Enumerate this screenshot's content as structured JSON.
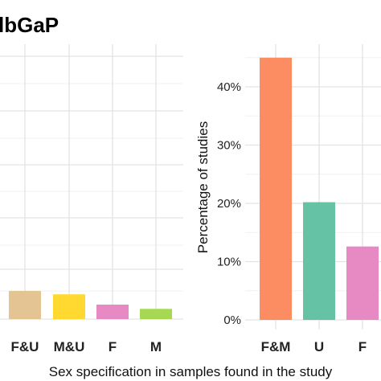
{
  "page_title": "lbGaP",
  "xlabel": "Sex specification in samples found in the study",
  "chart_data": [
    {
      "type": "bar",
      "panel": "left",
      "categories": [
        "F&U",
        "M&U",
        "F",
        "M"
      ],
      "values": [
        3.3,
        2.9,
        1.7,
        1.2
      ],
      "colors": [
        "#e5c494",
        "#ffd92f",
        "#e78ac3",
        "#a6d854"
      ],
      "ylim": [
        0,
        32
      ]
    },
    {
      "type": "bar",
      "panel": "right",
      "categories": [
        "F&M",
        "U",
        "F"
      ],
      "values": [
        45.0,
        20.2,
        12.6
      ],
      "colors": [
        "#fc8d62",
        "#66c2a5",
        "#e78ac3"
      ],
      "ylabel": "Percentage of studies",
      "yticks": [
        "0%",
        "10%",
        "20%",
        "30%",
        "40%"
      ],
      "ytick_values": [
        0,
        10,
        20,
        30,
        40
      ],
      "ylim": [
        -2,
        47
      ]
    }
  ]
}
